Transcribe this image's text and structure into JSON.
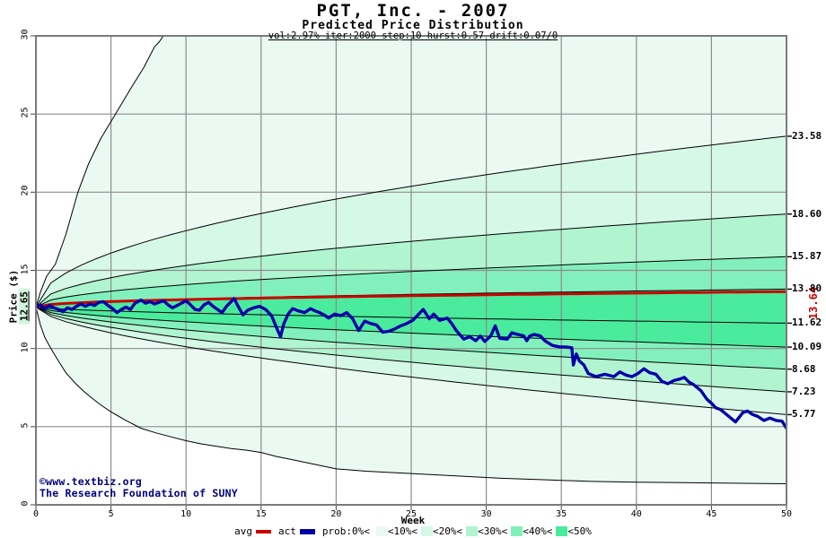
{
  "chart_data": {
    "type": "fan-line",
    "title": "PGT, Inc. - 2007",
    "subtitle": "Predicted Price Distribution",
    "params": "vol:2.97% iter:2000 step:10 hurst:0.57 drift:0.07/0",
    "xlabel": "Week",
    "ylabel": "Price ($)",
    "xlim": [
      0,
      50
    ],
    "ylim": [
      0,
      30
    ],
    "xticks": [
      0,
      5,
      10,
      15,
      20,
      25,
      30,
      35,
      40,
      45,
      50
    ],
    "yticks": [
      0,
      5,
      10,
      15,
      20,
      25,
      30
    ],
    "grid_color": "#8c8c8c",
    "start_price": 12.65,
    "start_price_label": "12.65",
    "avg": {
      "legend_label": "avg",
      "color": "#cc0000",
      "end_value": 13.64,
      "end_label": "13.64",
      "exp": 0.45
    },
    "actual": {
      "legend_label": "act",
      "color": "#0101a8",
      "points": [
        [
          0,
          12.65
        ],
        [
          0.3,
          12.8
        ],
        [
          0.6,
          12.55
        ],
        [
          0.9,
          12.75
        ],
        [
          1.2,
          12.6
        ],
        [
          1.5,
          12.5
        ],
        [
          1.8,
          12.35
        ],
        [
          2.1,
          12.6
        ],
        [
          2.4,
          12.5
        ],
        [
          2.7,
          12.7
        ],
        [
          3,
          12.85
        ],
        [
          3.3,
          12.7
        ],
        [
          3.6,
          12.85
        ],
        [
          3.9,
          12.75
        ],
        [
          4.2,
          12.95
        ],
        [
          4.5,
          13
        ],
        [
          4.8,
          12.75
        ],
        [
          5.1,
          12.55
        ],
        [
          5.4,
          12.3
        ],
        [
          5.7,
          12.5
        ],
        [
          6,
          12.65
        ],
        [
          6.3,
          12.5
        ],
        [
          6.6,
          12.9
        ],
        [
          7,
          13.1
        ],
        [
          7.3,
          12.9
        ],
        [
          7.6,
          13
        ],
        [
          7.9,
          12.85
        ],
        [
          8.2,
          12.95
        ],
        [
          8.5,
          13.05
        ],
        [
          8.8,
          12.8
        ],
        [
          9.1,
          12.6
        ],
        [
          9.4,
          12.75
        ],
        [
          9.7,
          12.9
        ],
        [
          10,
          13.05
        ],
        [
          10.3,
          12.8
        ],
        [
          10.6,
          12.5
        ],
        [
          10.9,
          12.45
        ],
        [
          11.2,
          12.8
        ],
        [
          11.5,
          12.95
        ],
        [
          11.8,
          12.7
        ],
        [
          12.1,
          12.5
        ],
        [
          12.4,
          12.3
        ],
        [
          12.7,
          12.7
        ],
        [
          13,
          13
        ],
        [
          13.2,
          13.2
        ],
        [
          13.5,
          12.65
        ],
        [
          13.8,
          12.15
        ],
        [
          14.1,
          12.45
        ],
        [
          14.5,
          12.6
        ],
        [
          14.9,
          12.7
        ],
        [
          15.3,
          12.5
        ],
        [
          15.7,
          12.1
        ],
        [
          16,
          11.4
        ],
        [
          16.3,
          10.75
        ],
        [
          16.5,
          11.55
        ],
        [
          16.8,
          12.2
        ],
        [
          17.1,
          12.55
        ],
        [
          17.5,
          12.4
        ],
        [
          17.9,
          12.3
        ],
        [
          18.3,
          12.55
        ],
        [
          18.6,
          12.4
        ],
        [
          18.9,
          12.3
        ],
        [
          19.2,
          12.15
        ],
        [
          19.5,
          11.95
        ],
        [
          19.9,
          12.2
        ],
        [
          20.3,
          12.1
        ],
        [
          20.7,
          12.3
        ],
        [
          21.1,
          11.9
        ],
        [
          21.5,
          11.15
        ],
        [
          21.7,
          11.45
        ],
        [
          21.9,
          11.75
        ],
        [
          22.3,
          11.6
        ],
        [
          22.7,
          11.5
        ],
        [
          23.1,
          11.05
        ],
        [
          23.5,
          11.1
        ],
        [
          23.9,
          11.25
        ],
        [
          24.3,
          11.45
        ],
        [
          24.7,
          11.6
        ],
        [
          25.1,
          11.8
        ],
        [
          25.5,
          12.2
        ],
        [
          25.8,
          12.5
        ],
        [
          26.2,
          11.9
        ],
        [
          26.5,
          12.2
        ],
        [
          26.9,
          11.8
        ],
        [
          27.4,
          11.95
        ],
        [
          27.7,
          11.6
        ],
        [
          28,
          11.15
        ],
        [
          28.5,
          10.6
        ],
        [
          28.9,
          10.75
        ],
        [
          29.3,
          10.5
        ],
        [
          29.6,
          10.8
        ],
        [
          29.9,
          10.45
        ],
        [
          30.3,
          10.8
        ],
        [
          30.6,
          11.45
        ],
        [
          30.9,
          10.65
        ],
        [
          31.4,
          10.6
        ],
        [
          31.7,
          11
        ],
        [
          32.1,
          10.9
        ],
        [
          32.5,
          10.8
        ],
        [
          32.7,
          10.5
        ],
        [
          32.9,
          10.8
        ],
        [
          33.2,
          10.9
        ],
        [
          33.6,
          10.8
        ],
        [
          33.9,
          10.5
        ],
        [
          34.4,
          10.2
        ],
        [
          34.9,
          10.1
        ],
        [
          35.3,
          10.1
        ],
        [
          35.7,
          10.05
        ],
        [
          35.8,
          8.95
        ],
        [
          36,
          9.65
        ],
        [
          36.2,
          9.2
        ],
        [
          36.5,
          8.95
        ],
        [
          36.8,
          8.4
        ],
        [
          37.3,
          8.2
        ],
        [
          37.9,
          8.35
        ],
        [
          38.5,
          8.2
        ],
        [
          38.9,
          8.5
        ],
        [
          39.3,
          8.3
        ],
        [
          39.7,
          8.2
        ],
        [
          40.1,
          8.4
        ],
        [
          40.5,
          8.7
        ],
        [
          40.9,
          8.45
        ],
        [
          41.3,
          8.35
        ],
        [
          41.7,
          7.9
        ],
        [
          42.1,
          7.75
        ],
        [
          42.5,
          7.95
        ],
        [
          42.9,
          8.05
        ],
        [
          43.2,
          8.15
        ],
        [
          43.5,
          7.85
        ],
        [
          43.8,
          7.7
        ],
        [
          44.3,
          7.3
        ],
        [
          44.7,
          6.75
        ],
        [
          45,
          6.5
        ],
        [
          45.3,
          6.2
        ],
        [
          45.6,
          6.1
        ],
        [
          46.1,
          5.7
        ],
        [
          46.6,
          5.3
        ],
        [
          47.1,
          5.9
        ],
        [
          47.4,
          6
        ],
        [
          47.7,
          5.8
        ],
        [
          48.1,
          5.65
        ],
        [
          48.5,
          5.4
        ],
        [
          48.9,
          5.55
        ],
        [
          49.3,
          5.4
        ],
        [
          49.7,
          5.35
        ],
        [
          50,
          4.9
        ]
      ]
    },
    "bands": {
      "colors": {
        "p10": "#eafaf2",
        "p20": "#d6f8e6",
        "p30": "#b0f4d0",
        "p40": "#82f0bc",
        "p50": "#4aeb9d"
      },
      "curves": [
        {
          "end": 23.58,
          "exp": 0.5,
          "label": "23.58"
        },
        {
          "end": 18.6,
          "exp": 0.5,
          "label": "18.60"
        },
        {
          "end": 15.87,
          "exp": 0.5,
          "label": "15.87"
        },
        {
          "end": 13.8,
          "exp": 0.5,
          "label": "13.80"
        },
        {
          "end": 11.62,
          "exp": 0.62,
          "label": "11.62"
        },
        {
          "end": 10.09,
          "exp": 0.62,
          "label": "10.09"
        },
        {
          "end": 8.68,
          "exp": 0.62,
          "label": "8.68"
        },
        {
          "end": 7.23,
          "exp": 0.62,
          "label": "7.23"
        },
        {
          "end": 5.77,
          "exp": 0.62,
          "label": "5.77"
        }
      ],
      "max_curve": [
        [
          0,
          12.65
        ],
        [
          0.3,
          13.6
        ],
        [
          0.7,
          14.6
        ],
        [
          1.3,
          15.4
        ],
        [
          2,
          17.3
        ],
        [
          2.8,
          20
        ],
        [
          3.5,
          21.8
        ],
        [
          4.3,
          23.4
        ],
        [
          5.3,
          25
        ],
        [
          6.3,
          26.6
        ],
        [
          7.2,
          28
        ],
        [
          7.9,
          29.3
        ],
        [
          8.2,
          29.6
        ],
        [
          8.7,
          30.3
        ]
      ],
      "min_curve": [
        [
          0,
          12.65
        ],
        [
          0.3,
          11.5
        ],
        [
          0.6,
          10.7
        ],
        [
          1,
          10
        ],
        [
          1.5,
          9.2
        ],
        [
          2,
          8.45
        ],
        [
          2.6,
          7.8
        ],
        [
          3.2,
          7.25
        ],
        [
          3.7,
          6.85
        ],
        [
          4.3,
          6.4
        ],
        [
          5,
          5.95
        ],
        [
          6,
          5.4
        ],
        [
          7,
          4.9
        ],
        [
          8,
          4.6
        ],
        [
          9,
          4.35
        ],
        [
          10,
          4.1
        ],
        [
          11,
          3.9
        ],
        [
          12,
          3.75
        ],
        [
          13,
          3.6
        ],
        [
          14,
          3.5
        ],
        [
          15,
          3.35
        ],
        [
          16,
          3.1
        ],
        [
          17,
          2.9
        ],
        [
          18,
          2.7
        ],
        [
          19,
          2.5
        ],
        [
          20,
          2.3
        ],
        [
          22,
          2.15
        ],
        [
          25,
          2
        ],
        [
          28,
          1.85
        ],
        [
          31,
          1.7
        ],
        [
          34,
          1.6
        ],
        [
          37,
          1.5
        ],
        [
          40,
          1.45
        ],
        [
          45,
          1.4
        ],
        [
          50,
          1.35
        ]
      ],
      "fills": [
        {
          "upper": "max",
          "lower": "c0",
          "color": "p10"
        },
        {
          "upper": "c0",
          "lower": "c1",
          "color": "p20"
        },
        {
          "upper": "c1",
          "lower": "c2",
          "color": "p30"
        },
        {
          "upper": "c2",
          "lower": "c3",
          "color": "p40"
        },
        {
          "upper": "c3",
          "lower": "c5",
          "color": "p50"
        },
        {
          "upper": "c5",
          "lower": "c6",
          "color": "p40"
        },
        {
          "upper": "c6",
          "lower": "c7",
          "color": "p30"
        },
        {
          "upper": "c7",
          "lower": "c8",
          "color": "p20"
        },
        {
          "upper": "c8",
          "lower": "min",
          "color": "p10"
        }
      ]
    },
    "legend": {
      "prob_label": "prob:0%<",
      "band_labels": [
        "<10%<",
        "<20%<",
        "<30%<",
        "<40%<",
        "<50%"
      ]
    },
    "copyright_line1": "©www.textbiz.org",
    "copyright_line2": "The Research Foundation of SUNY"
  }
}
